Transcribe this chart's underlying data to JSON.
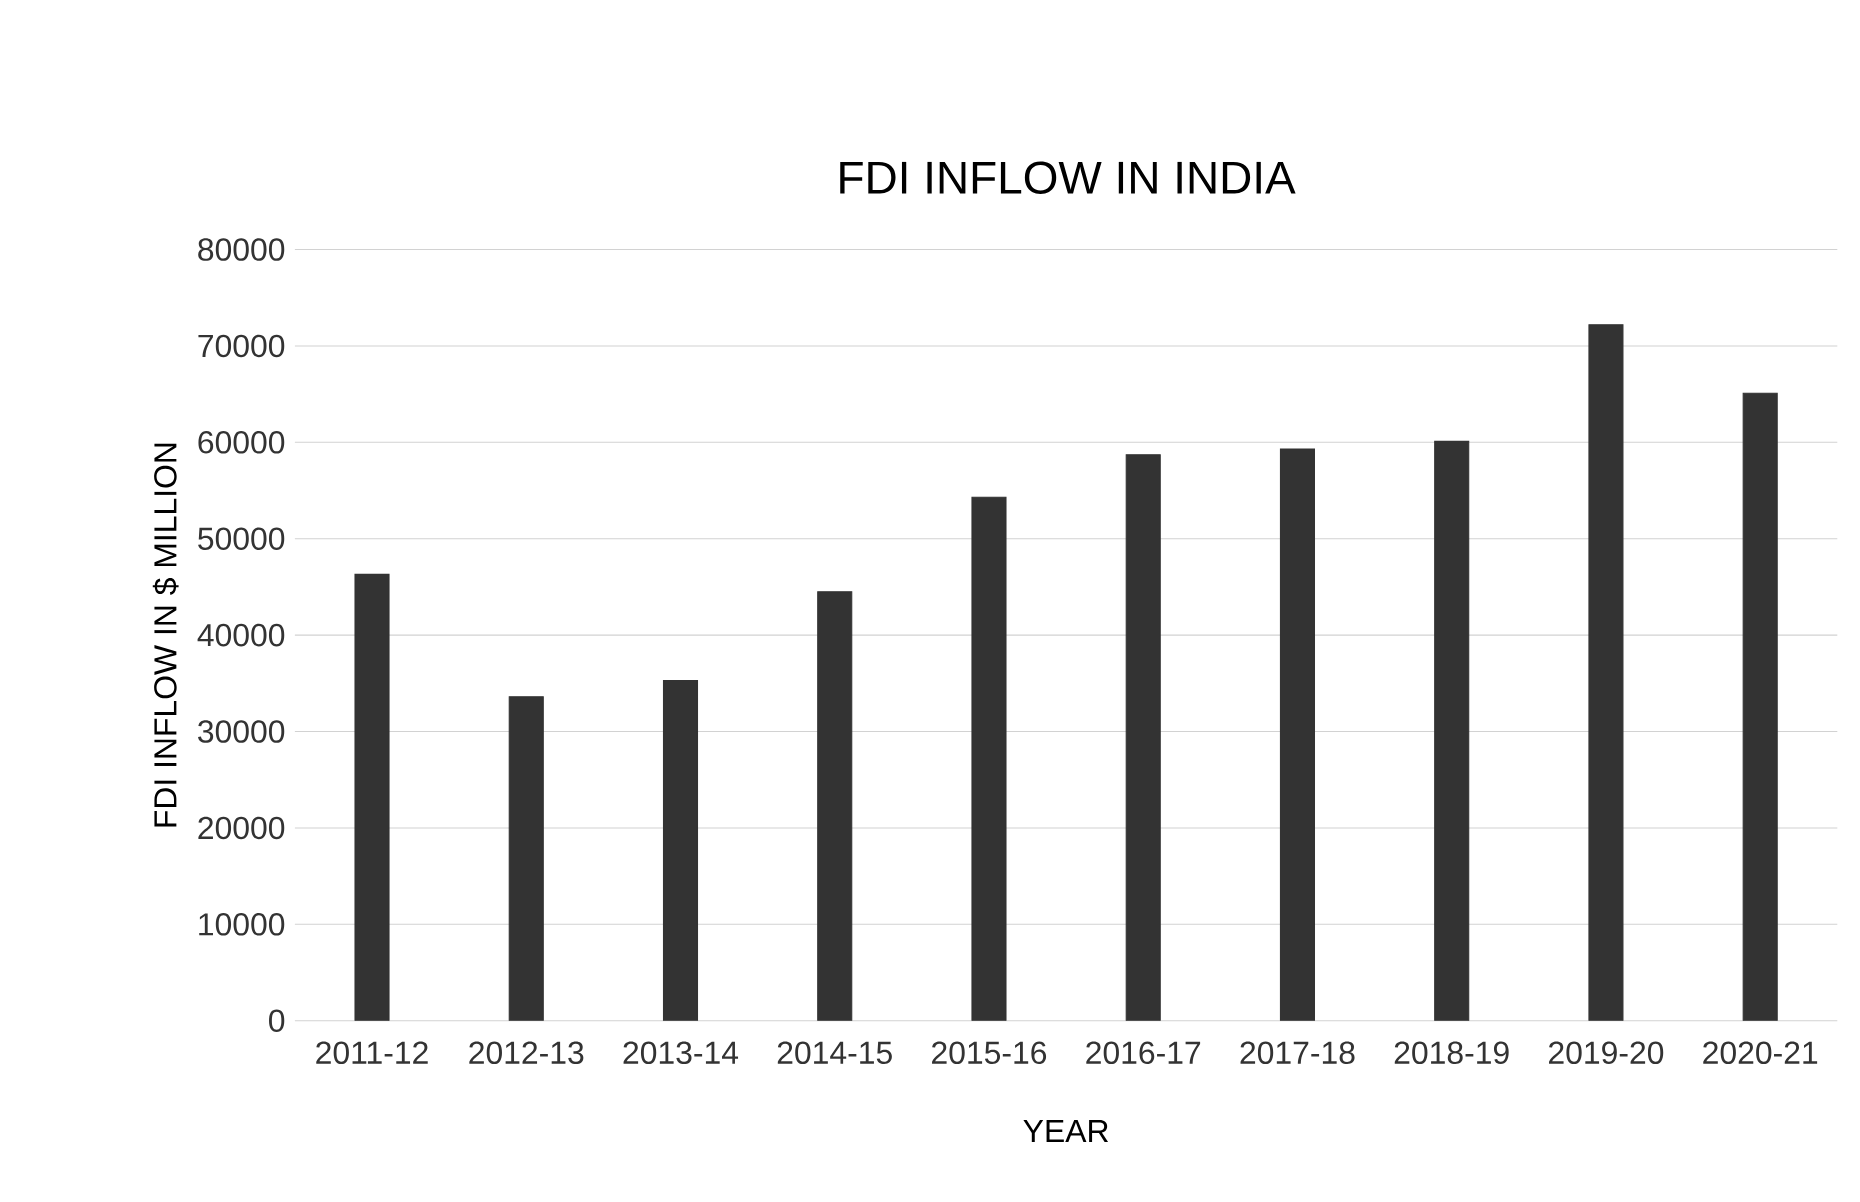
{
  "chart_data": {
    "type": "bar",
    "title": "FDI INFLOW IN INDIA",
    "xlabel": "YEAR",
    "ylabel": "FDI INFLOW IN $ MILLION",
    "categories": [
      "2011-12",
      "2012-13",
      "2013-14",
      "2014-15",
      "2015-16",
      "2016-17",
      "2017-18",
      "2018-19",
      "2019-20",
      "2020-21"
    ],
    "values": [
      46300,
      33600,
      35300,
      44500,
      54300,
      58700,
      59300,
      60100,
      72200,
      65100
    ],
    "color": "#333333",
    "ylim": [
      0,
      80000
    ],
    "yticks": [
      0,
      10000,
      20000,
      30000,
      40000,
      50000,
      60000,
      70000,
      80000
    ],
    "grid": "y"
  }
}
